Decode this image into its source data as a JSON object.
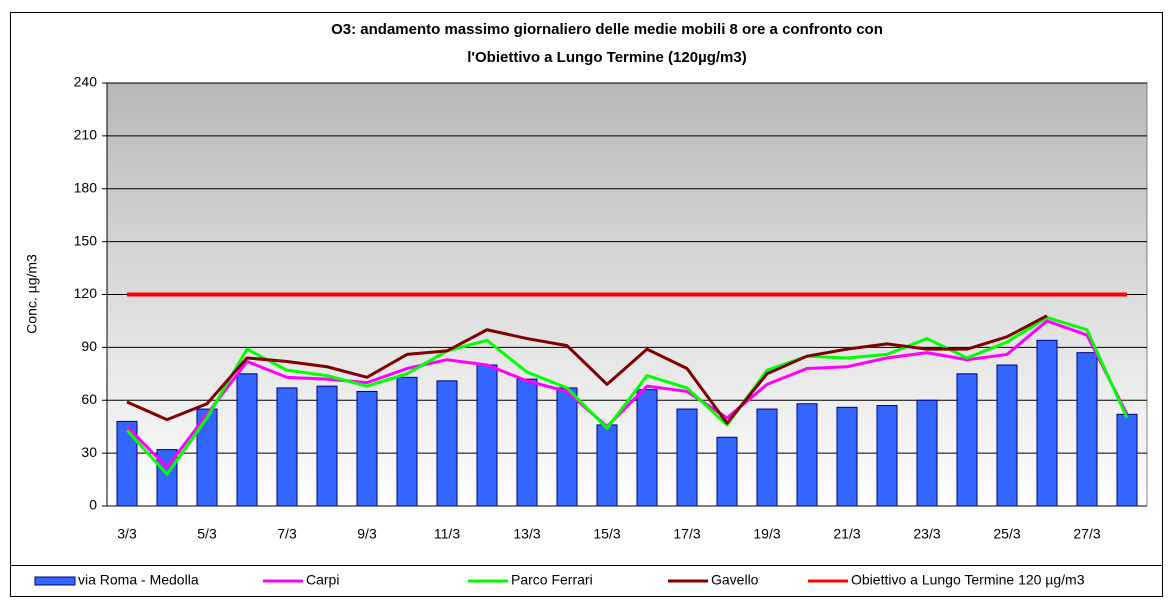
{
  "chart_data": {
    "type": "bar",
    "title": [
      "O3: andamento massimo giornaliero delle medie mobili  8 ore a confronto con",
      "l'Obiettivo a Lungo Termine  (120µg/m3)"
    ],
    "y_label": "Conc. µg/m3",
    "categories": [
      "3/3",
      null,
      "5/3",
      null,
      "7/3",
      null,
      "9/3",
      null,
      "11/3",
      null,
      "13/3",
      null,
      "15/3",
      null,
      "17/3",
      null,
      "19/3",
      null,
      "21/3",
      null,
      "23/3",
      null,
      "25/3",
      null,
      "27/3",
      null
    ],
    "ylim": [
      0,
      240
    ],
    "yticks": [
      0,
      30,
      60,
      90,
      120,
      150,
      180,
      210,
      240
    ],
    "grid": true,
    "series": [
      {
        "name": "via Roma - Medolla",
        "type": "bar",
        "color": "#3366ff",
        "values": [
          48,
          32,
          55,
          75,
          67,
          68,
          65,
          73,
          71,
          80,
          72,
          67,
          46,
          66,
          55,
          39,
          55,
          58,
          56,
          57,
          60,
          75,
          80,
          94,
          87,
          52
        ]
      },
      {
        "name": "Carpi",
        "type": "line",
        "color": "#ff00ff",
        "values": [
          45,
          22,
          52,
          82,
          73,
          72,
          70,
          78,
          83,
          80,
          71,
          65,
          45,
          68,
          65,
          50,
          69,
          78,
          79,
          84,
          87,
          83,
          86,
          105,
          97,
          52
        ]
      },
      {
        "name": "Parco Ferrari",
        "type": "line",
        "color": "#00ff00",
        "values": [
          43,
          18,
          50,
          89,
          77,
          74,
          68,
          75,
          88,
          94,
          76,
          67,
          44,
          74,
          67,
          46,
          77,
          85,
          84,
          86,
          95,
          84,
          93,
          107,
          100,
          50
        ]
      },
      {
        "name": "Gavello",
        "type": "line",
        "color": "#800000",
        "values": [
          59,
          49,
          58,
          84,
          82,
          79,
          73,
          86,
          88,
          100,
          95,
          91,
          69,
          89,
          78,
          47,
          75,
          85,
          89,
          92,
          89,
          89,
          96,
          108,
          null,
          null
        ]
      },
      {
        "name": "Obiettivo  a Lungo Termine 120 µg/m3",
        "type": "line",
        "color": "#ff0000",
        "values": [
          120,
          120,
          120,
          120,
          120,
          120,
          120,
          120,
          120,
          120,
          120,
          120,
          120,
          120,
          120,
          120,
          120,
          120,
          120,
          120,
          120,
          120,
          120,
          120,
          120,
          120
        ]
      }
    ]
  }
}
